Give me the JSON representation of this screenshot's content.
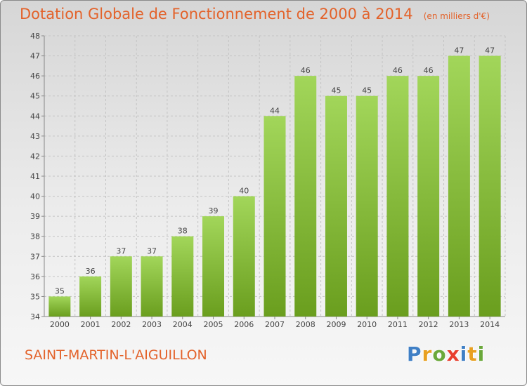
{
  "title": "Dotation Globale de Fonctionnement de 2000 à 2014",
  "subtitle": "(en milliers d'€)",
  "commune": "SAINT-MARTIN-L'AIGUILLON",
  "brand": {
    "name": "Proxiti",
    "letters": [
      "P",
      "r",
      "o",
      "x",
      "i",
      "t",
      "i"
    ],
    "colors": [
      "#3f7fc5",
      "#e8a020",
      "#6aa83a",
      "#e83f2f",
      "#3f7fc5",
      "#e8a020",
      "#6aa83a"
    ]
  },
  "chart_data": {
    "type": "bar",
    "categories": [
      "2000",
      "2001",
      "2002",
      "2003",
      "2004",
      "2005",
      "2006",
      "2007",
      "2008",
      "2009",
      "2010",
      "2011",
      "2012",
      "2013",
      "2014"
    ],
    "values": [
      35,
      36,
      37,
      37,
      38,
      39,
      40,
      44,
      46,
      45,
      45,
      46,
      46,
      47,
      47
    ],
    "ylim": [
      34,
      48
    ],
    "yticks": [
      34,
      35,
      36,
      37,
      38,
      39,
      40,
      41,
      42,
      43,
      44,
      45,
      46,
      47,
      48
    ],
    "grid": true,
    "colors": {
      "bar_top": "#a2d65a",
      "bar_bottom": "#6a9e1e",
      "label": "#444444",
      "axis": "#888888"
    }
  }
}
